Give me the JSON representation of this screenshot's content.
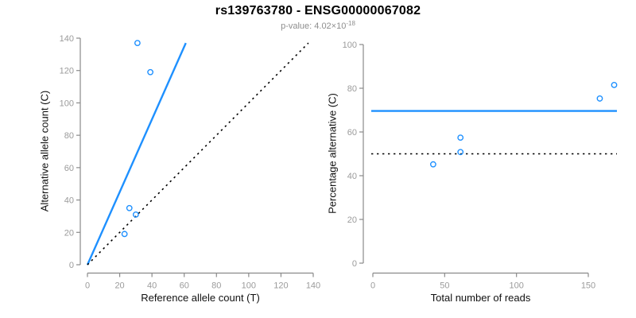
{
  "header": {
    "title": "rs139763780 - ENSG00000067082",
    "subtitle_prefix": "p-value: 4.02×10",
    "subtitle_exponent": "-18"
  },
  "colors": {
    "accent_blue": "#1E90FF",
    "axis_line_gray": "#8a8a8a",
    "tick_label_gray": "#9b9b9b",
    "dotted_line_black": "#000000",
    "title_black": "#000000",
    "subtitle_gray": "#8e8e8e"
  },
  "chart_data": [
    {
      "type": "scatter",
      "name": "allele-counts",
      "title": "rs139763780 - ENSG00000067082",
      "subtitle": "p-value: 4.02×10^-18",
      "xlabel": "Reference allele count (T)",
      "ylabel": "Alternative allele count (C)",
      "xlim": [
        0,
        140
      ],
      "ylim": [
        0,
        140
      ],
      "x_ticks": [
        0,
        20,
        40,
        60,
        80,
        100,
        120,
        140
      ],
      "y_ticks": [
        0,
        20,
        40,
        60,
        80,
        100,
        120,
        140
      ],
      "grid": false,
      "legend": null,
      "points": [
        {
          "x": 23,
          "y": 19
        },
        {
          "x": 30,
          "y": 31
        },
        {
          "x": 26,
          "y": 35
        },
        {
          "x": 39,
          "y": 119
        },
        {
          "x": 31,
          "y": 137
        }
      ],
      "lines": [
        {
          "name": "fit-line",
          "style": "solid",
          "color": "#1E90FF",
          "x1": 0,
          "y1": 0,
          "x2": 61,
          "y2": 137
        },
        {
          "name": "identity-line",
          "style": "dotted",
          "color": "#000000",
          "x1": 0,
          "y1": 0,
          "x2": 137,
          "y2": 137
        }
      ]
    },
    {
      "type": "scatter",
      "name": "percentage-alternative",
      "xlabel": "Total number of reads",
      "ylabel": "Percentage alternative (C)",
      "xlim": [
        0,
        150
      ],
      "ylim": [
        0,
        100
      ],
      "x_ticks": [
        0,
        50,
        100,
        150
      ],
      "y_ticks": [
        0,
        20,
        40,
        60,
        80,
        100
      ],
      "grid": false,
      "legend": null,
      "points": [
        {
          "x": 42,
          "y": 45.2
        },
        {
          "x": 61,
          "y": 50.8
        },
        {
          "x": 61,
          "y": 57.4
        },
        {
          "x": 158,
          "y": 75.3
        },
        {
          "x": 168,
          "y": 81.5
        }
      ],
      "lines": [
        {
          "name": "mean-percentage-line",
          "style": "solid",
          "color": "#1E90FF",
          "hline": 69.6
        },
        {
          "name": "expected-50pct-line",
          "style": "dotted",
          "color": "#000000",
          "hline": 50
        }
      ]
    }
  ]
}
